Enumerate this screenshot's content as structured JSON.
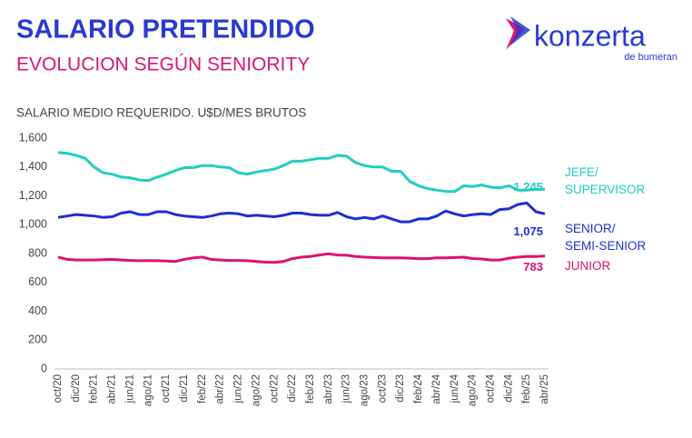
{
  "header": {
    "logo": {
      "brand": "konzerta",
      "sub": "de bumeran"
    }
  },
  "chart_data": {
    "type": "line",
    "title": "SALARIO PRETENDIDO",
    "subtitle": "EVOLUCION SEGÚN SENIORITY",
    "y_label": "SALARIO MEDIO REQUERIDO. U$D/MES BRUTOS",
    "categories": [
      "oct/20",
      null,
      "dic/20",
      null,
      "feb/21",
      null,
      "abr/21",
      null,
      "jun/21",
      null,
      "ago/21",
      null,
      "oct/21",
      null,
      "dic/21",
      null,
      "feb/22",
      null,
      "abr/22",
      null,
      "jun/22",
      null,
      "ago/22",
      null,
      "oct/22",
      null,
      "dic/22",
      null,
      "feb/23",
      null,
      "abr/23",
      null,
      "jun/23",
      null,
      "ago/23",
      null,
      "oct/23",
      null,
      "dic/23",
      null,
      "feb/24",
      null,
      "abr/24",
      null,
      "jun/24",
      null,
      "ago/24",
      null,
      "oct/24",
      null,
      "dic/24",
      null,
      "feb/25",
      null,
      "abr/25"
    ],
    "ylim": [
      0,
      1600
    ],
    "yticks": [
      0,
      200,
      400,
      600,
      800,
      {
        "value": 1000,
        "label": "1,000"
      },
      {
        "value": 1200,
        "label": "1,200"
      },
      {
        "value": 1400,
        "label": "1,400"
      },
      {
        "value": 1600,
        "label": "1,600"
      }
    ],
    "grid": false,
    "series": [
      {
        "name": "JEFE/ SUPERVISOR",
        "color": "#1fcfbf",
        "end_label": "1,245",
        "values": [
          1500,
          1495,
          1480,
          1460,
          1400,
          1360,
          1350,
          1330,
          1325,
          1310,
          1305,
          1330,
          1350,
          1375,
          1395,
          1395,
          1410,
          1410,
          1400,
          1395,
          1360,
          1350,
          1365,
          1375,
          1385,
          1410,
          1440,
          1440,
          1450,
          1460,
          1460,
          1480,
          1475,
          1430,
          1410,
          1400,
          1400,
          1370,
          1370,
          1300,
          1270,
          1250,
          1240,
          1230,
          1230,
          1270,
          1265,
          1275,
          1260,
          1255,
          1270,
          1240,
          1240,
          1245,
          1245
        ]
      },
      {
        "name": "SENIOR/ SEMI-SENIOR",
        "color": "#1f2fd1",
        "end_label": "1,075",
        "values": [
          1050,
          1060,
          1070,
          1065,
          1060,
          1050,
          1055,
          1080,
          1090,
          1070,
          1070,
          1090,
          1090,
          1070,
          1060,
          1055,
          1050,
          1060,
          1075,
          1080,
          1075,
          1060,
          1065,
          1060,
          1055,
          1065,
          1080,
          1080,
          1070,
          1065,
          1065,
          1085,
          1055,
          1040,
          1050,
          1040,
          1060,
          1040,
          1020,
          1020,
          1040,
          1040,
          1060,
          1095,
          1075,
          1060,
          1070,
          1075,
          1070,
          1105,
          1110,
          1140,
          1150,
          1090,
          1075
        ]
      },
      {
        "name": "JUNIOR",
        "color": "#e0116f",
        "end_label": "783",
        "values": [
          775,
          760,
          755,
          755,
          755,
          758,
          760,
          755,
          752,
          750,
          750,
          750,
          748,
          745,
          760,
          770,
          775,
          760,
          755,
          752,
          752,
          750,
          745,
          740,
          738,
          745,
          765,
          775,
          780,
          790,
          798,
          790,
          788,
          780,
          775,
          772,
          770,
          770,
          770,
          768,
          765,
          765,
          770,
          770,
          772,
          775,
          765,
          762,
          755,
          755,
          768,
          775,
          780,
          780,
          783
        ]
      }
    ]
  }
}
